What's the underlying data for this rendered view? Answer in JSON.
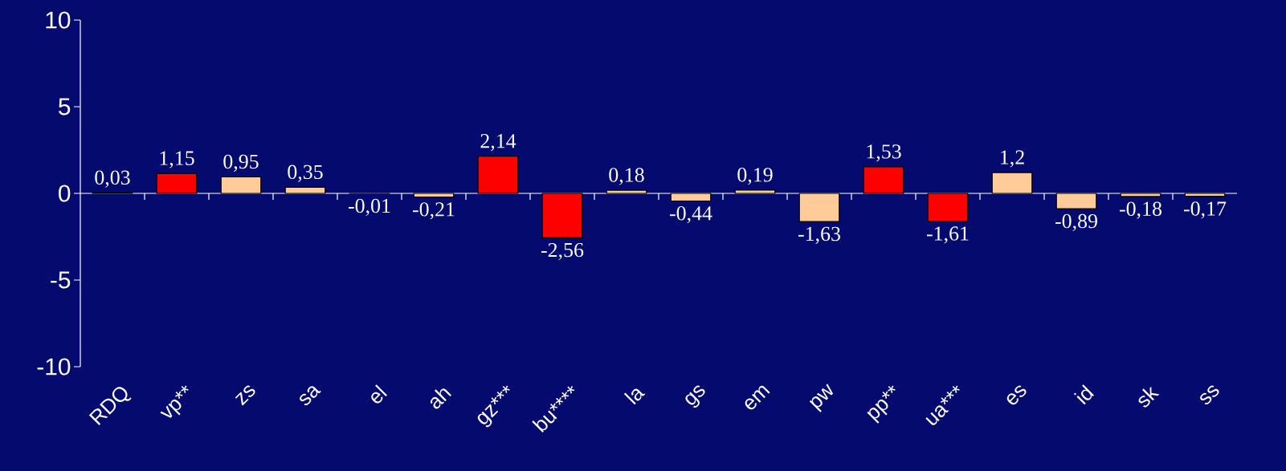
{
  "chart_data": {
    "type": "bar",
    "categories": [
      "RDQ",
      "vp**",
      "zs",
      "sa",
      "el",
      "ah",
      "gz***",
      "bu****",
      "la",
      "gs",
      "em",
      "pw",
      "pp**",
      "ua***",
      "es",
      "id",
      "sk",
      "ss"
    ],
    "values": [
      0.03,
      1.15,
      0.95,
      0.35,
      -0.01,
      -0.21,
      2.14,
      -2.56,
      0.18,
      -0.44,
      0.19,
      -1.63,
      1.53,
      -1.61,
      1.2,
      -0.89,
      -0.18,
      -0.17
    ],
    "colors": [
      "#ffcc99",
      "#ff0000",
      "#ffcc99",
      "#ffcc99",
      "#ffcc99",
      "#ffcc99",
      "#ff0000",
      "#ff0000",
      "#ffcc99",
      "#ffcc99",
      "#ffcc99",
      "#ffcc99",
      "#ff0000",
      "#ff0000",
      "#ffcc99",
      "#ffcc99",
      "#ffcc99",
      "#ffcc99"
    ],
    "value_labels": [
      "0,03",
      "1,15",
      "0,95",
      "0,35",
      "-0,01",
      "-0,21",
      "2,14",
      "-2,56",
      "0,18",
      "-0,44",
      "0,19",
      "-1,63",
      "1,53",
      "-1,61",
      "1,2",
      "-0,89",
      "-0,18",
      "-0,17"
    ],
    "ylim": [
      -10,
      10
    ],
    "yticks": [
      -10,
      -5,
      0,
      5,
      10
    ]
  }
}
